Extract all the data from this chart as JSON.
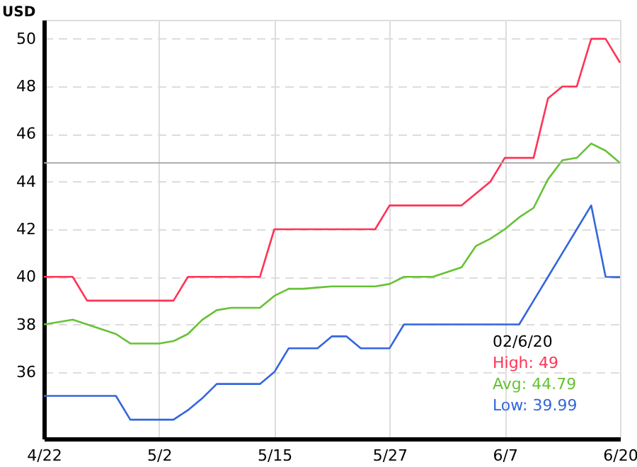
{
  "chart_data": {
    "type": "line",
    "ylabel": "USD",
    "categories": [
      "4/22",
      null,
      null,
      null,
      null,
      null,
      null,
      null,
      "5/2",
      null,
      null,
      null,
      null,
      null,
      null,
      null,
      "5/15",
      null,
      null,
      null,
      null,
      null,
      null,
      null,
      "5/27",
      null,
      null,
      null,
      null,
      null,
      null,
      null,
      "6/7",
      null,
      null,
      null,
      null,
      null,
      null,
      null,
      "6/20"
    ],
    "series": [
      {
        "name": "High: 49",
        "color": "#ff3355",
        "values": [
          40,
          40,
          40,
          39,
          39,
          39,
          39,
          39,
          39,
          39,
          40,
          40,
          40,
          40,
          40,
          40,
          42,
          42,
          42,
          42,
          42,
          42,
          42,
          42,
          43,
          43,
          43,
          43,
          43,
          43,
          43.5,
          44,
          45,
          45,
          45,
          47.5,
          48,
          48,
          50,
          50,
          49
        ]
      },
      {
        "name": "Avg: 44.79",
        "color": "#66c233",
        "values": [
          38,
          38.1,
          38.2,
          38,
          37.8,
          37.6,
          37.2,
          37.2,
          37.2,
          37.3,
          37.6,
          38.2,
          38.6,
          38.7,
          38.7,
          38.7,
          39.2,
          39.5,
          39.5,
          39.55,
          39.6,
          39.6,
          39.6,
          39.6,
          39.7,
          40,
          40,
          40,
          40.2,
          40.4,
          41.3,
          41.6,
          42,
          42.5,
          42.9,
          44.1,
          44.9,
          45,
          45.6,
          45.3,
          44.79
        ]
      },
      {
        "name": "Low: 39.99",
        "color": "#3366dd",
        "values": [
          35,
          35,
          35,
          35,
          35,
          35,
          34,
          34,
          34,
          34,
          34.4,
          34.9,
          35.5,
          35.5,
          35.5,
          35.5,
          36,
          37,
          37,
          37,
          37.5,
          37.5,
          37,
          37,
          37,
          38,
          38,
          38,
          38,
          38,
          38,
          38,
          38,
          38,
          39,
          40,
          41,
          42,
          43,
          40,
          39.99
        ]
      }
    ],
    "ylim": [
      33.2,
      50.8
    ],
    "yticks": [
      36,
      38,
      40,
      42,
      44,
      46,
      48,
      50
    ],
    "ref_lines": [
      {
        "axis": "y",
        "value": 44.79,
        "color": "#aaaaaa"
      }
    ],
    "annotations": [
      "02/6/20"
    ],
    "grid": true,
    "legend": "bottom right"
  }
}
